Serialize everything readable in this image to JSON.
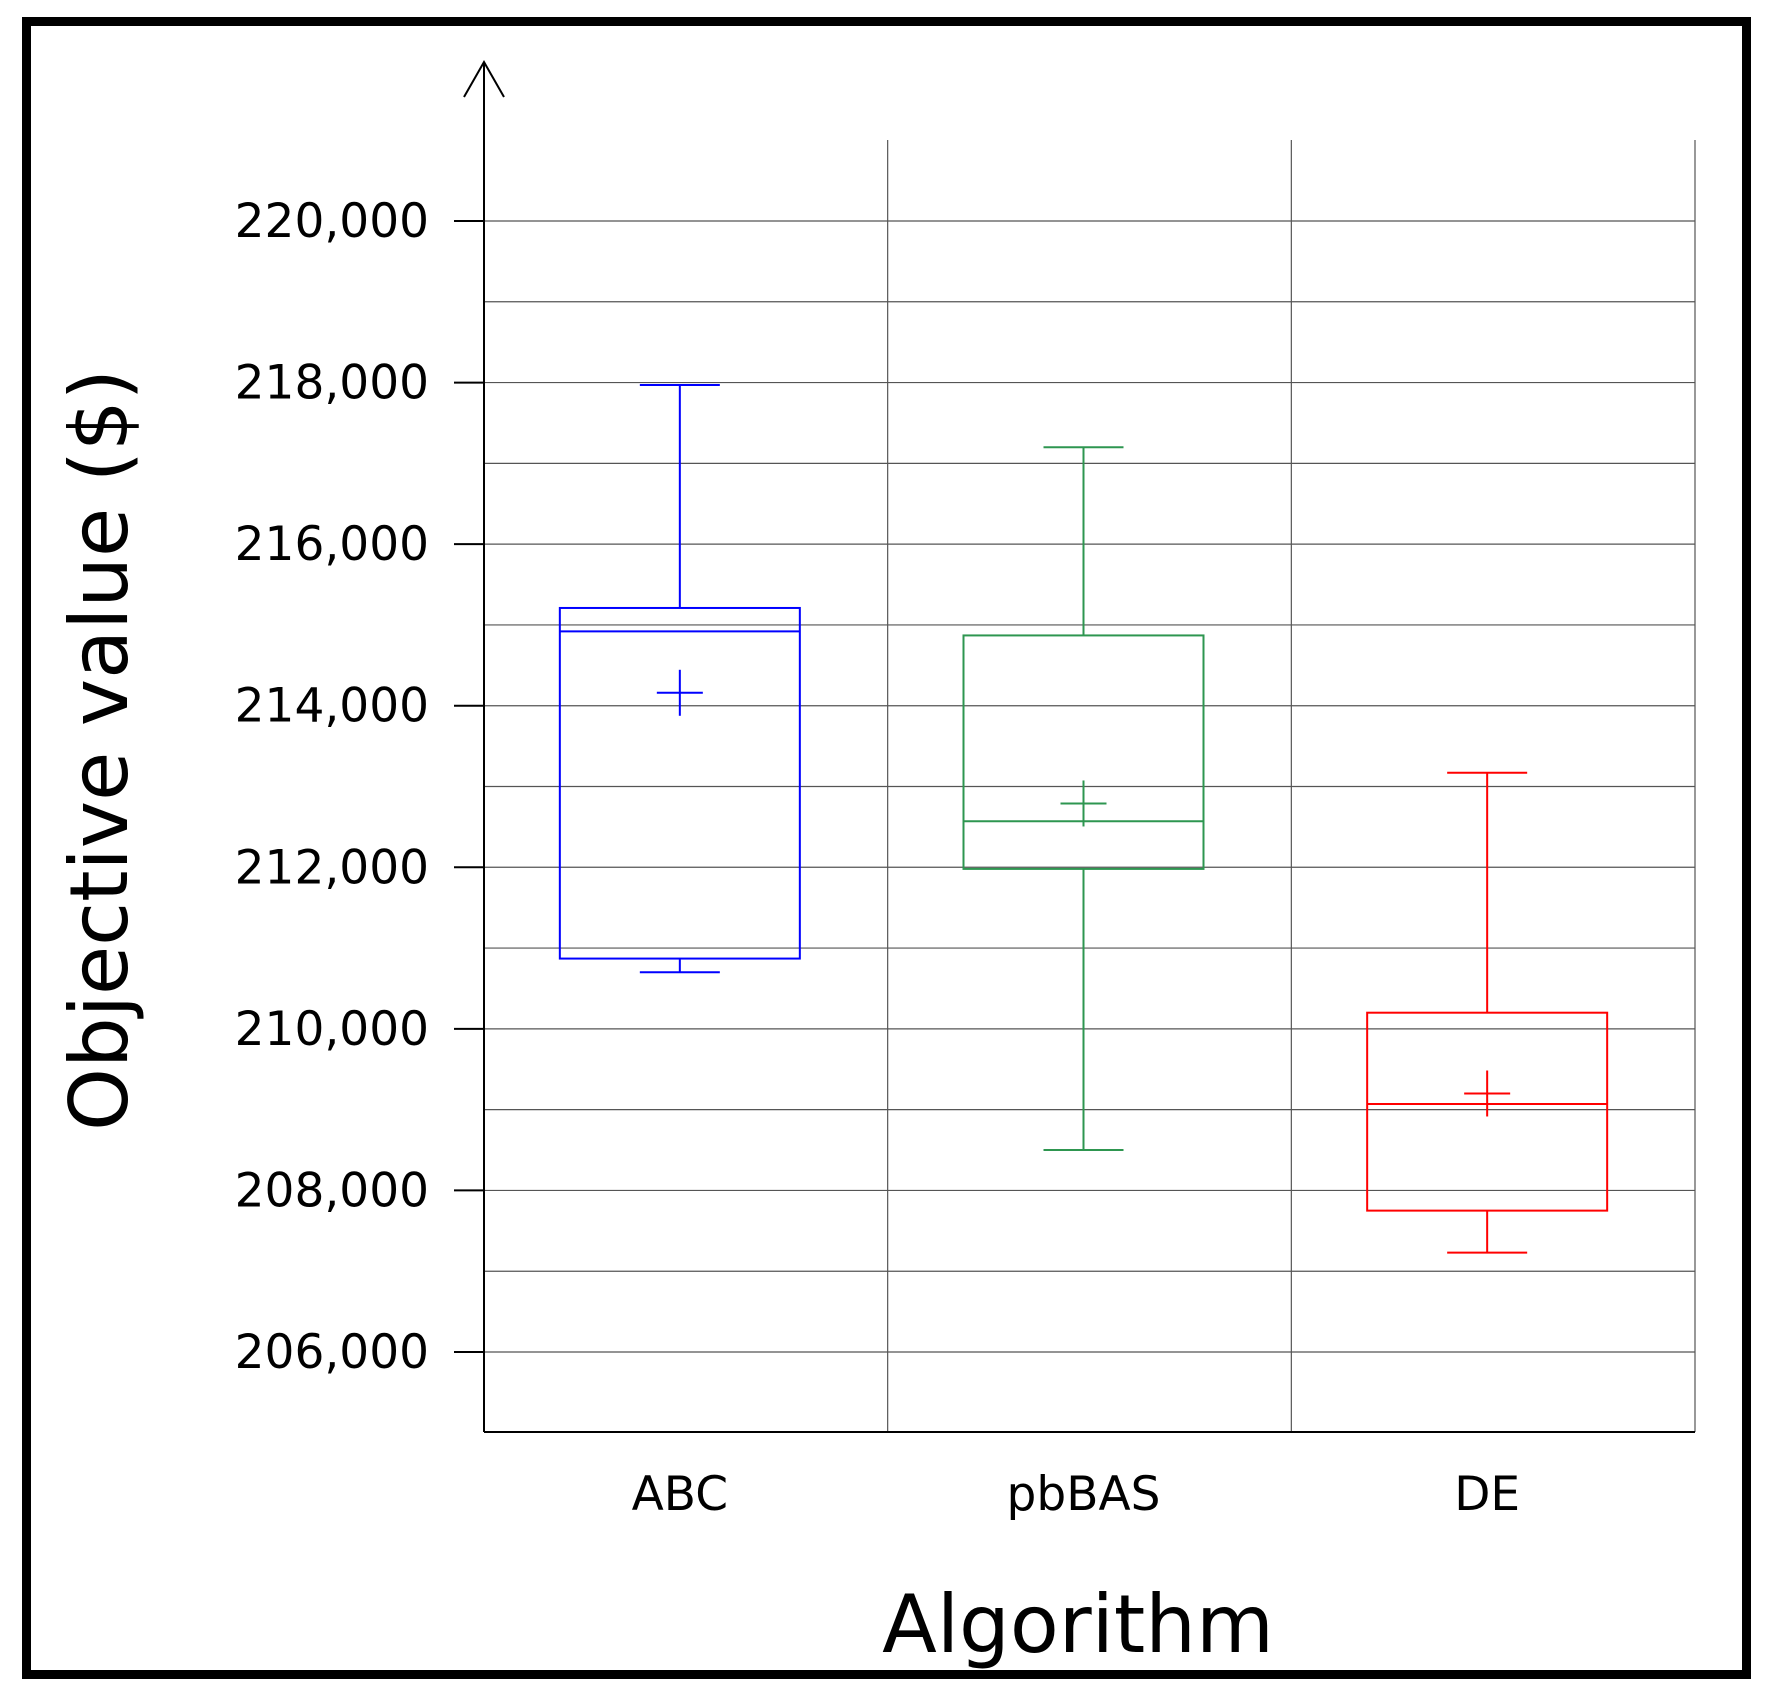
{
  "chart_data": {
    "type": "box",
    "title": "",
    "xlabel": "Algorithm",
    "ylabel": "Objective value ($)",
    "categories": [
      "ABC",
      "pbBAS",
      "DE"
    ],
    "ylim": [
      205000,
      221000
    ],
    "yticks": [
      206000,
      208000,
      210000,
      212000,
      214000,
      216000,
      218000,
      220000
    ],
    "ytick_labels": [
      "206,000",
      "208,000",
      "210,000",
      "212,000",
      "214,000",
      "216,000",
      "218,000",
      "220,000"
    ],
    "minor_gridlines": [
      207000,
      209000,
      211000,
      213000,
      215000,
      217000,
      219000
    ],
    "grid": true,
    "series": [
      {
        "category": "ABC",
        "color": "#0000ff",
        "min": 210700,
        "q1": 210870,
        "median": 214920,
        "q3": 215210,
        "max": 217970,
        "mean": 214160
      },
      {
        "category": "pbBAS",
        "color": "#2e9650",
        "min": 208500,
        "q1": 211980,
        "median": 212570,
        "q3": 214870,
        "max": 217200,
        "mean": 212790
      },
      {
        "category": "DE",
        "color": "#ff0000",
        "min": 207230,
        "q1": 207750,
        "median": 209070,
        "q3": 210200,
        "max": 213170,
        "mean": 209200
      }
    ]
  }
}
